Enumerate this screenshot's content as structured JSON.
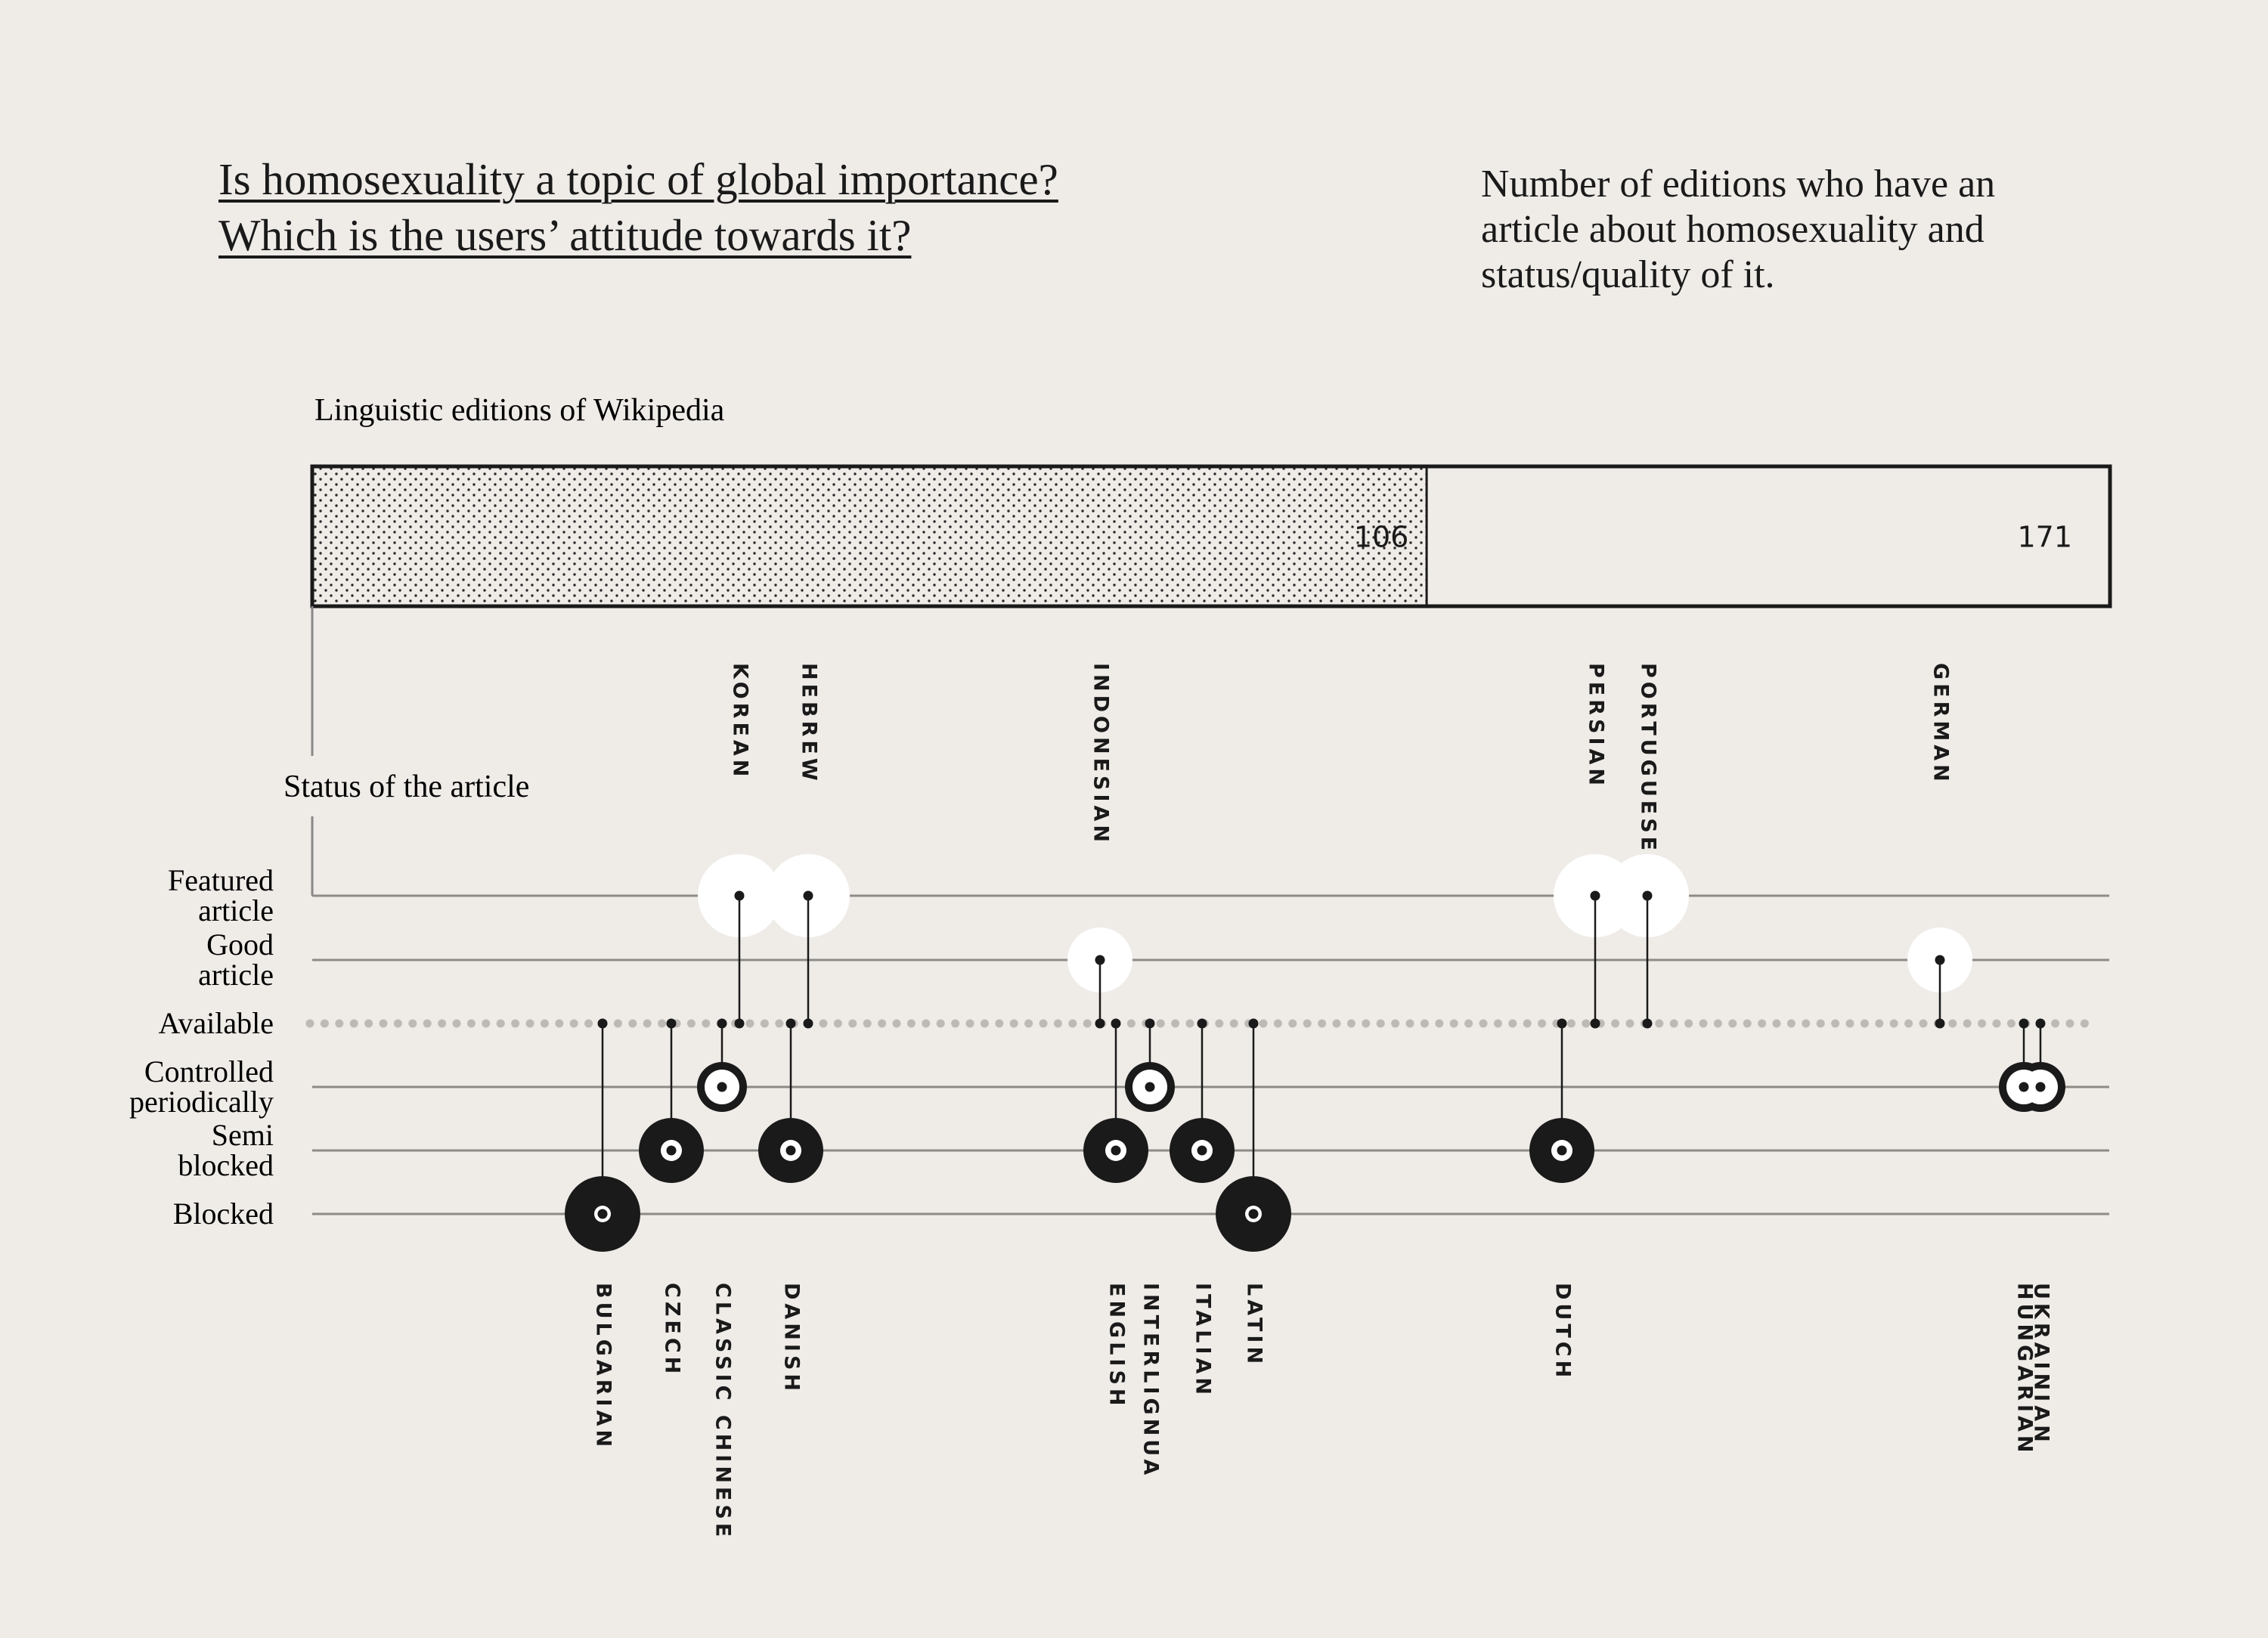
{
  "title": {
    "line1": "Is homosexuality a topic of global importance?",
    "line2": "Which is the users’ attitude towards it?"
  },
  "subtitle": "Number of editions who have an article about homosexuality and status/quality of it.",
  "chart_data": {
    "type": "dot-strip",
    "bar": {
      "label": "Linguistic editions of Wikipedia",
      "with_article": 106,
      "total": 171
    },
    "axis_label": "Status of the article",
    "status_levels": [
      {
        "key": "featured",
        "label": [
          "Featured",
          "article"
        ]
      },
      {
        "key": "good",
        "label": [
          "Good",
          "article"
        ]
      },
      {
        "key": "available",
        "label": [
          "Available"
        ]
      },
      {
        "key": "controlled",
        "label": [
          "Controlled",
          "periodically"
        ]
      },
      {
        "key": "semi",
        "label": [
          "Semi",
          "blocked"
        ]
      },
      {
        "key": "blocked",
        "label": [
          "Blocked"
        ]
      }
    ],
    "editions": [
      {
        "name": "BULGARIAN",
        "status": "blocked"
      },
      {
        "name": "CZECH",
        "status": "semi"
      },
      {
        "name": "CLASSIC CHINESE",
        "status": "controlled"
      },
      {
        "name": "KOREAN",
        "status": "featured"
      },
      {
        "name": "DANISH",
        "status": "semi"
      },
      {
        "name": "HEBREW",
        "status": "featured"
      },
      {
        "name": "INDONESIAN",
        "status": "good"
      },
      {
        "name": "ENGLISH",
        "status": "semi"
      },
      {
        "name": "INTERLIGNUA",
        "status": "controlled"
      },
      {
        "name": "ITALIAN",
        "status": "semi"
      },
      {
        "name": "LATIN",
        "status": "blocked"
      },
      {
        "name": "DUTCH",
        "status": "semi"
      },
      {
        "name": "PERSIAN",
        "status": "featured"
      },
      {
        "name": "PORTUGUESE",
        "status": "featured"
      },
      {
        "name": "GERMAN",
        "status": "good"
      },
      {
        "name": "HUNGARIAN",
        "status": "controlled"
      },
      {
        "name": "UKRAINIAN",
        "status": "controlled"
      }
    ]
  },
  "colors": {
    "background": "#efece8",
    "ink": "#1a1a1a",
    "highlight": "#ffffff",
    "dotted": "#bdbab6"
  }
}
